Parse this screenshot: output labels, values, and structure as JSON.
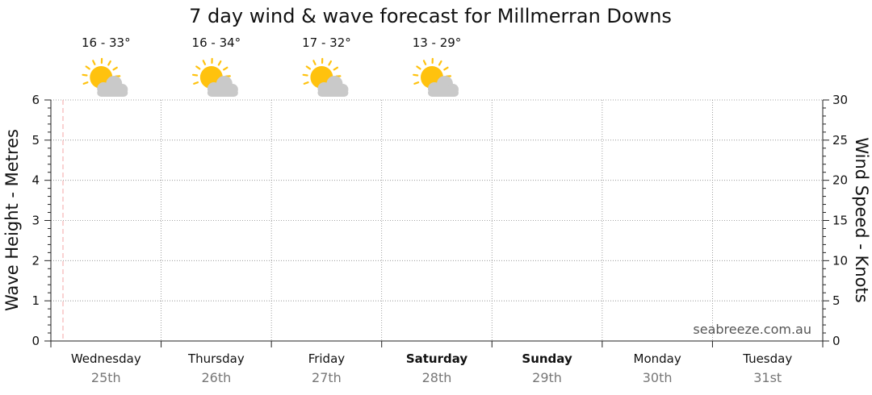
{
  "chart_data": {
    "type": "line",
    "title": "7 day wind & wave forecast for Millmerran Downs",
    "ylabel_left": "Wave Height - Metres",
    "ylabel_right": "Wind Speed - Knots",
    "ylim_left": [
      0,
      6
    ],
    "ylim_right": [
      0,
      30
    ],
    "yticks_left": [
      "0",
      "1",
      "2",
      "3",
      "4",
      "5",
      "6"
    ],
    "yticks_right": [
      "0",
      "5",
      "10",
      "15",
      "20",
      "25",
      "30"
    ],
    "grid": true,
    "days": [
      {
        "name": "Wednesday",
        "date": "25th",
        "bold": false
      },
      {
        "name": "Thursday",
        "date": "26th",
        "bold": false
      },
      {
        "name": "Friday",
        "date": "27th",
        "bold": false
      },
      {
        "name": "Saturday",
        "date": "28th",
        "bold": true
      },
      {
        "name": "Sunday",
        "date": "29th",
        "bold": true
      },
      {
        "name": "Monday",
        "date": "30th",
        "bold": false
      },
      {
        "name": "Tuesday",
        "date": "31st",
        "bold": false
      }
    ],
    "forecast": [
      {
        "temp": "16 - 33°",
        "icon": "partly-cloudy-icon"
      },
      {
        "temp": "16 - 34°",
        "icon": "partly-cloudy-icon"
      },
      {
        "temp": "17 - 32°",
        "icon": "partly-cloudy-icon"
      },
      {
        "temp": "13 - 29°",
        "icon": "partly-cloudy-icon"
      }
    ],
    "series": [],
    "watermark": "seabreeze.com.au",
    "colors": {
      "grid": "#888888",
      "now_marker": "#f4a6a6",
      "sun": "#ffc20e",
      "sun_ray": "#ffc20e",
      "cloud": "#c9c9c9"
    }
  }
}
